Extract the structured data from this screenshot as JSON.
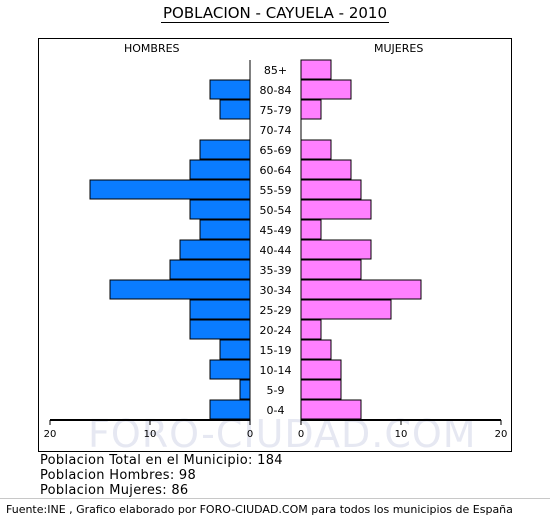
{
  "title": "POBLACION - CAYUELA - 2010",
  "watermark": "FORO-CIUDAD.COM",
  "stats": {
    "total": "Poblacion Total en el Municipio: 184",
    "hombres": "Poblacion Hombres: 98",
    "mujeres": "Poblacion Mujeres: 86"
  },
  "footer": "Fuente:INE , Grafico elaborado por FORO-CIUDAD.COM para todos los municipios de España",
  "colors": {
    "male": "#0a7cff",
    "female": "#ff80ff"
  },
  "chart_data": {
    "type": "bar",
    "orientation": "population-pyramid",
    "categories": [
      "85+",
      "80-84",
      "75-79",
      "70-74",
      "65-69",
      "60-64",
      "55-59",
      "50-54",
      "45-49",
      "40-44",
      "35-39",
      "30-34",
      "25-29",
      "20-24",
      "15-19",
      "10-14",
      "5-9",
      "0-4"
    ],
    "series": [
      {
        "name": "HOMBRES",
        "values": [
          0,
          4,
          3,
          0,
          5,
          6,
          16,
          6,
          5,
          7,
          8,
          14,
          6,
          6,
          3,
          4,
          1,
          4
        ]
      },
      {
        "name": "MUJERES",
        "values": [
          3,
          5,
          2,
          0,
          3,
          5,
          6,
          7,
          2,
          7,
          6,
          12,
          9,
          2,
          3,
          4,
          4,
          6
        ]
      }
    ],
    "xlim": [
      -20,
      20
    ],
    "xticks": [
      "20",
      "10",
      "0",
      "10",
      "20"
    ],
    "legend": "top"
  }
}
